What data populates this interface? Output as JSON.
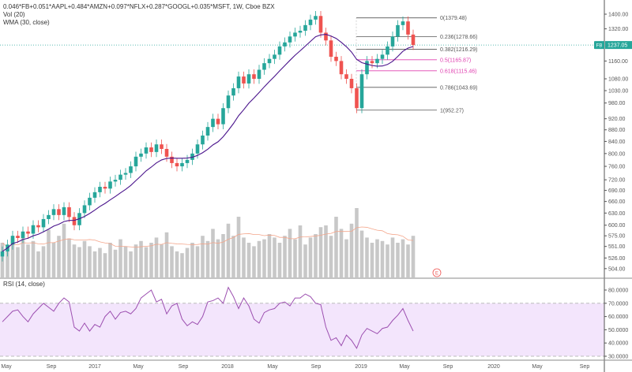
{
  "legend": {
    "symbol_line": "0.046*FB+0.051*AAPL+0.484*AMZN+0.097*NFLX+0.287*GOOGL+0.035*MSFT, 1W, Cboe BZX",
    "volume_label": "Vol (20)",
    "wma_label": "WMA (30, close)",
    "rsi_label": "RSI (14, close)"
  },
  "price_tag": {
    "symbol": "FB",
    "value": "1237.05",
    "price": 1237.05
  },
  "earnings_marker": "E",
  "colors": {
    "up": "#26a69a",
    "down": "#ef5350",
    "wma": "#4a148c",
    "volume": "#c8c8c8",
    "volume_ma": "#f4a58a",
    "rsi": "#9c4fb0",
    "rsi_band": "#f3e5fc",
    "fib_main": "#555555",
    "fib_mid": "#e040b0",
    "price_line": "#26a69a"
  },
  "chart_data": [
    {
      "type": "candlestick",
      "scale": "log",
      "price_axis_ticks": [
        "1400.00",
        "1320.00",
        "1160.00",
        "1080.00",
        "1030.00",
        "980.00",
        "920.00",
        "880.00",
        "840.00",
        "800.00",
        "760.00",
        "720.00",
        "690.00",
        "660.00",
        "630.00",
        "600.00",
        "575.00",
        "551.00",
        "526.00",
        "504.00"
      ],
      "ylim": [
        504,
        1400
      ],
      "time_axis_ticks": [
        "May",
        "Sep",
        "2017",
        "May",
        "Sep",
        "2018",
        "May",
        "Sep",
        "2019",
        "May",
        "Sep",
        "2020",
        "May",
        "Sep"
      ],
      "closes": [
        540,
        555,
        575,
        570,
        585,
        580,
        600,
        595,
        615,
        625,
        640,
        625,
        645,
        620,
        600,
        630,
        650,
        670,
        685,
        700,
        695,
        715,
        720,
        735,
        740,
        760,
        790,
        800,
        820,
        805,
        830,
        815,
        790,
        770,
        760,
        770,
        780,
        800,
        830,
        860,
        890,
        920,
        900,
        960,
        1010,
        1040,
        1090,
        1060,
        1100,
        1080,
        1120,
        1150,
        1170,
        1190,
        1230,
        1250,
        1280,
        1300,
        1310,
        1340,
        1370,
        1390,
        1300,
        1260,
        1180,
        1160,
        1100,
        1080,
        1040,
        960,
        1100,
        1160,
        1150,
        1170,
        1190,
        1230,
        1280,
        1340,
        1360,
        1290,
        1237
      ],
      "volume": [
        40,
        30,
        45,
        35,
        50,
        38,
        42,
        30,
        36,
        55,
        40,
        48,
        62,
        45,
        38,
        35,
        42,
        36,
        30,
        34,
        28,
        40,
        32,
        44,
        36,
        30,
        38,
        42,
        35,
        40,
        46,
        38,
        52,
        36,
        30,
        28,
        34,
        40,
        36,
        48,
        42,
        56,
        44,
        50,
        62,
        48,
        70,
        46,
        40,
        36,
        42,
        44,
        50,
        46,
        40,
        48,
        56,
        44,
        60,
        38,
        46,
        50,
        58,
        60,
        48,
        70,
        56,
        44,
        62,
        80,
        54,
        46,
        40,
        44,
        42,
        38,
        46,
        40,
        44,
        38,
        48
      ],
      "fib_levels": [
        {
          "ratio": "0",
          "price": 1379.48,
          "label": "0(1379.48)"
        },
        {
          "ratio": "0.236",
          "price": 1278.66,
          "label": "0.236(1278.66)"
        },
        {
          "ratio": "0.382",
          "price": 1216.29,
          "label": "0.382(1216.29)"
        },
        {
          "ratio": "0.5",
          "price": 1165.87,
          "label": "0.5(1165.87)"
        },
        {
          "ratio": "0.618",
          "price": 1115.46,
          "label": "0.618(1115.46)"
        },
        {
          "ratio": "0.786",
          "price": 1043.69,
          "label": "0.786(1043.69)"
        },
        {
          "ratio": "1",
          "price": 952.27,
          "label": "1(952.27)"
        }
      ]
    },
    {
      "type": "line",
      "name": "RSI (14, close)",
      "ylim": [
        30,
        80
      ],
      "overbought": 70,
      "oversold": 30,
      "axis_ticks": [
        "80.0000",
        "70.0000",
        "60.0000",
        "50.0000",
        "40.0000",
        "30.0000"
      ],
      "values": [
        56,
        60,
        64,
        65,
        60,
        56,
        62,
        66,
        70,
        67,
        64,
        70,
        74,
        71,
        52,
        49,
        55,
        49,
        54,
        52,
        60,
        64,
        58,
        63,
        64,
        62,
        66,
        74,
        77,
        80,
        71,
        73,
        62,
        68,
        70,
        58,
        53,
        56,
        54,
        60,
        71,
        72,
        74,
        70,
        82,
        75,
        66,
        74,
        68,
        58,
        55,
        63,
        65,
        66,
        70,
        71,
        68,
        74,
        74,
        77,
        75,
        70,
        69,
        52,
        42,
        44,
        38,
        46,
        42,
        36,
        46,
        51,
        49,
        47,
        51,
        52,
        57,
        61,
        66,
        57,
        49
      ]
    }
  ]
}
